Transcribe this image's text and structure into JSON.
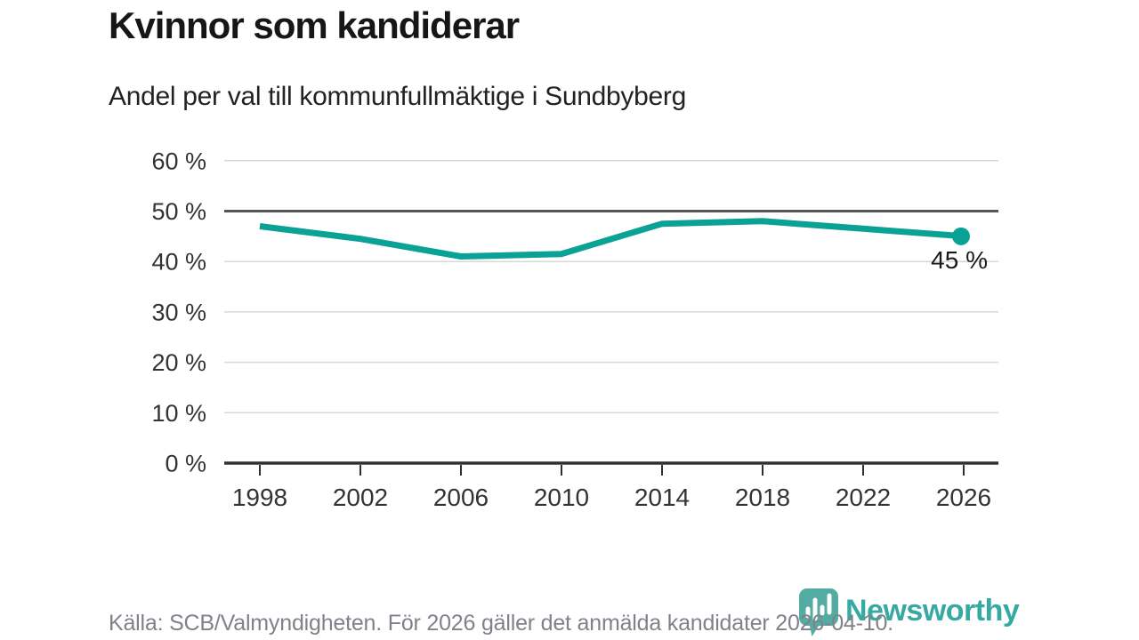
{
  "chart_data": {
    "type": "line",
    "title": "Kvinnor som kandiderar",
    "subtitle": "Andel per val till kommunfullmäktige i Sundbyberg",
    "categories": [
      "1998",
      "2002",
      "2006",
      "2010",
      "2014",
      "2018",
      "2022",
      "2026"
    ],
    "values": [
      47,
      44.5,
      41,
      41.5,
      47.5,
      48,
      46.5,
      45
    ],
    "unit": "%",
    "ylim": [
      0,
      60
    ],
    "ytick_step": 10,
    "ytick_labels": [
      "0 %",
      "10 %",
      "20 %",
      "30 %",
      "40 %",
      "50 %",
      "60 %"
    ],
    "reference_line_value": 50,
    "end_label": "45 %",
    "grid": true,
    "legend": "none"
  },
  "footer": {
    "source": "Källa: SCB/Valmyndigheten. För 2026 gäller det anmälda kandidater 2026-04-10."
  },
  "logo": {
    "brand": "Newsworthy",
    "icon": "newsworthy-bar-chart-bubble-icon"
  },
  "colors": {
    "line_teal": "#0aa295",
    "logo_icon_teal": "#4aa79e",
    "logo_text_teal": "#2ba59e",
    "text_dark": "#161616",
    "tick_label": "#333333",
    "grid_light": "#d8d8d8",
    "reference_line": "#55565c",
    "axis_dark": "#2e3133",
    "footer_gray": "#81818a",
    "annotation_black": "#1a1a1a"
  }
}
